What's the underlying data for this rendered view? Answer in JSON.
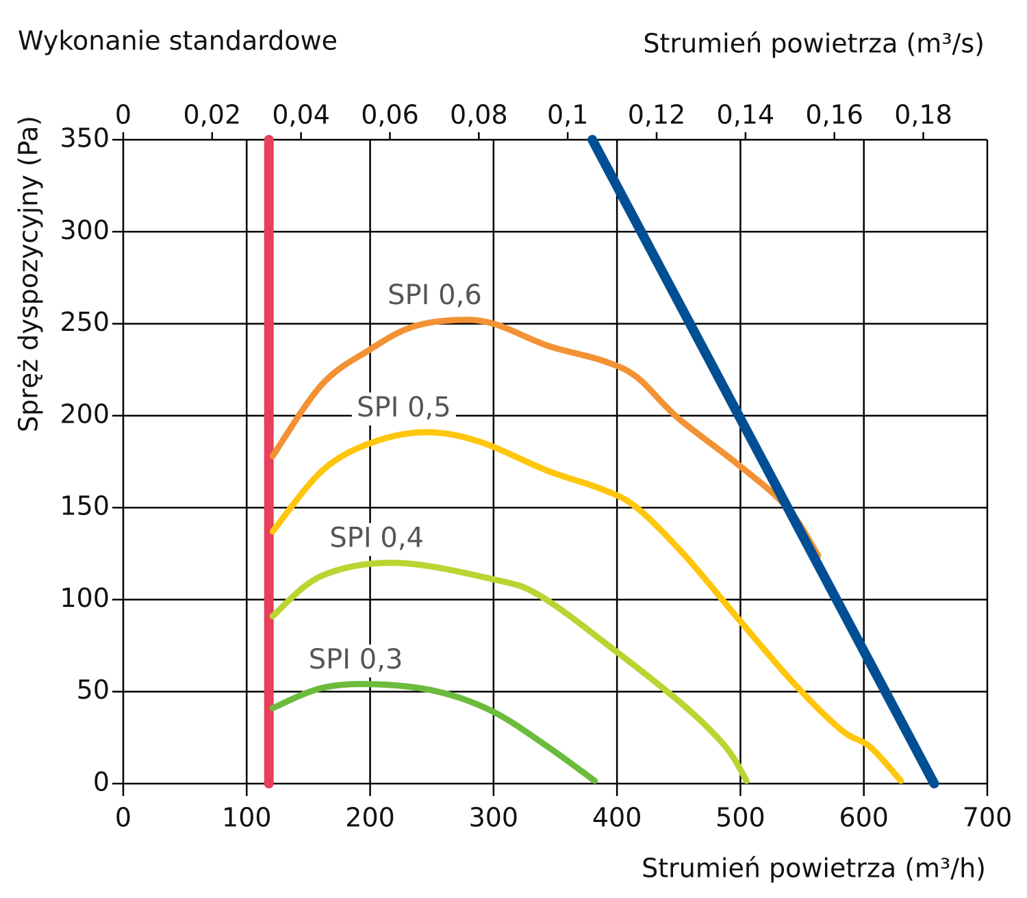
{
  "chart_data": {
    "type": "line",
    "title": "Wykonanie standardowe",
    "x2_label": "Strumień powietrza (m³/s)",
    "x_label": "Strumień powietrza (m³/h)",
    "y_label": "Spręż dyspozycyjny (Pa)",
    "xlim": [
      0,
      700
    ],
    "xticks": [
      0,
      100,
      200,
      300,
      400,
      500,
      600,
      700
    ],
    "x2lim": [
      0,
      0.1944
    ],
    "x2ticks": [
      0,
      {
        "value": 0.02,
        "label": "0,02"
      },
      {
        "value": 0.04,
        "label": "0,04"
      },
      {
        "value": 0.06,
        "label": "0,06"
      },
      {
        "value": 0.08,
        "label": "0,08"
      },
      {
        "value": 0.1,
        "label": "0,1"
      },
      {
        "value": 0.12,
        "label": "0,12"
      },
      {
        "value": 0.14,
        "label": "0,14"
      },
      {
        "value": 0.16,
        "label": "0,16"
      },
      {
        "value": 0.18,
        "label": "0,18"
      }
    ],
    "ylim": [
      0,
      350
    ],
    "yticks": [
      0,
      50,
      100,
      150,
      200,
      250,
      300,
      350
    ],
    "grid": true,
    "series": [
      {
        "color": "#e8405a",
        "width": 14,
        "x": [
          118,
          118
        ],
        "values": [
          0,
          350
        ]
      },
      {
        "name": "SPI 0,6",
        "color": "#f39234",
        "width": 9,
        "x": [
          121,
          161,
          200,
          233,
          269,
          300,
          344,
          388,
          416,
          449,
          499,
          538,
          563
        ],
        "values": [
          178,
          217,
          236,
          248,
          252,
          250,
          238,
          230,
          221,
          199,
          173,
          150,
          124
        ]
      },
      {
        "name": "SPI 0,5",
        "color": "#ffc60b",
        "width": 9,
        "x": [
          121,
          161,
          200,
          244,
          288,
          344,
          388,
          416,
          455,
          499,
          544,
          582,
          605,
          630
        ],
        "values": [
          137,
          170,
          185,
          191,
          186,
          170,
          160,
          150,
          124,
          89,
          54,
          29,
          20,
          1.5
        ]
      },
      {
        "name": "SPI 0,4",
        "color": "#b8d532",
        "width": 9,
        "x": [
          121,
          161,
          222,
          300,
          338,
          399,
          455,
          488,
          505
        ],
        "values": [
          91,
          113,
          120,
          111,
          102,
          72,
          42,
          20,
          1.5
        ]
      },
      {
        "name": "SPI 0,3",
        "color": "#6cbb3c",
        "width": 9,
        "x": [
          121,
          161,
          205,
          255,
          300,
          344,
          382
        ],
        "values": [
          41,
          52,
          54,
          50,
          39,
          20,
          1.5
        ]
      },
      {
        "color": "#004f95",
        "width": 14,
        "x": [
          380,
          657
        ],
        "values": [
          350,
          0
        ]
      }
    ]
  }
}
